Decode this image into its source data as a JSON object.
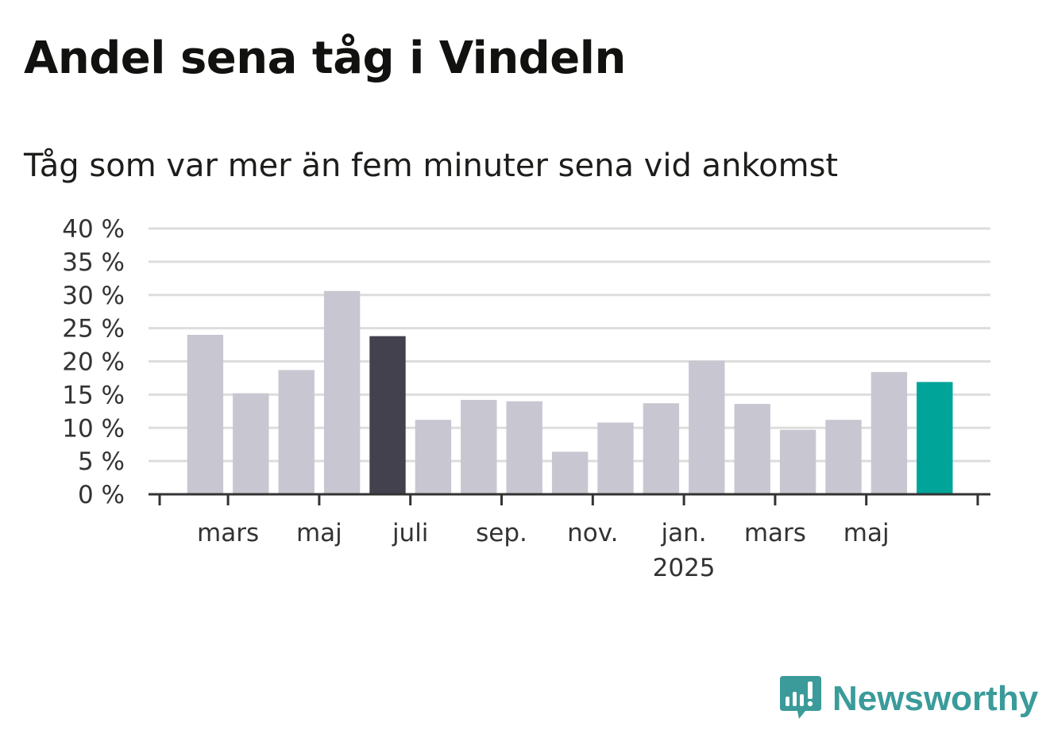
{
  "title": "Andel sena tåg i Vindeln",
  "subtitle": "Tåg som var mer än fem minuter sena vid ankomst",
  "brand": {
    "name": "Newsworthy",
    "icon": "newsworthy-logo-icon",
    "color": "#3a9b9a"
  },
  "colors": {
    "default_bar": "#c8c7d1",
    "highlight_dark": "#43414d",
    "highlight_current": "#00a499",
    "grid": "#dddddd",
    "axis": "#333333"
  },
  "chart_data": {
    "type": "bar",
    "title": "Andel sena tåg i Vindeln",
    "subtitle": "Tåg som var mer än fem minuter sena vid ankomst",
    "xlabel": "",
    "ylabel": "",
    "ylim": [
      0,
      40
    ],
    "yticks": [
      0,
      5,
      10,
      15,
      20,
      25,
      30,
      35,
      40
    ],
    "ytick_labels": [
      "0 %",
      "5 %",
      "10 %",
      "15 %",
      "20 %",
      "25 %",
      "30 %",
      "35 %",
      "40 %"
    ],
    "grid": true,
    "categories": [
      "2024-02",
      "2024-03",
      "2024-04",
      "2024-05",
      "2024-06",
      "2024-07",
      "2024-08",
      "2024-09",
      "2024-10",
      "2024-11",
      "2024-12",
      "2025-01",
      "2025-02",
      "2025-03",
      "2025-04",
      "2025-05",
      "2025-06"
    ],
    "values": [
      24,
      15.2,
      18.7,
      30.6,
      23.8,
      11.2,
      14.2,
      14,
      6.4,
      10.8,
      13.7,
      20.1,
      13.6,
      9.7,
      11.2,
      18.4,
      16.9
    ],
    "highlight": {
      "2024-06": "dark",
      "2025-06": "current"
    },
    "x_tick_labels": [
      {
        "label": "mars",
        "sub": ""
      },
      {
        "label": "maj",
        "sub": ""
      },
      {
        "label": "juli",
        "sub": ""
      },
      {
        "label": "sep.",
        "sub": ""
      },
      {
        "label": "nov.",
        "sub": ""
      },
      {
        "label": "jan.",
        "sub": "2025"
      },
      {
        "label": "mars",
        "sub": ""
      },
      {
        "label": "maj",
        "sub": ""
      }
    ]
  }
}
